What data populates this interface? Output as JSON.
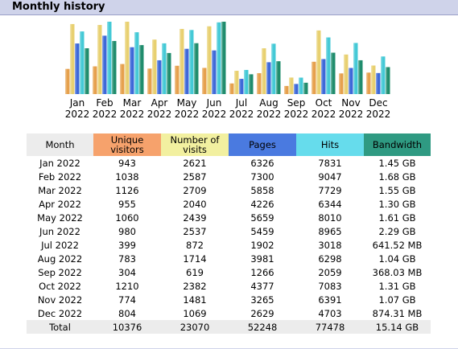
{
  "header": {
    "title": "Monthly history"
  },
  "chart_data": {
    "type": "bar",
    "categories": [
      "Jan 2022",
      "Feb 2022",
      "Mar 2022",
      "Apr 2022",
      "May 2022",
      "Jun 2022",
      "Jul 2022",
      "Aug 2022",
      "Sep 2022",
      "Oct 2022",
      "Nov 2022",
      "Dec 2022"
    ],
    "month_labels": [
      "Jan",
      "Feb",
      "Mar",
      "Apr",
      "May",
      "Jun",
      "Jul",
      "Aug",
      "Sep",
      "Oct",
      "Nov",
      "Dec"
    ],
    "year_labels": [
      "2022",
      "2022",
      "2022",
      "2022",
      "2022",
      "2022",
      "2022",
      "2022",
      "2022",
      "2022",
      "2022",
      "2022"
    ],
    "colors": [
      "#e6a04c",
      "#e8d070",
      "#3d68d8",
      "#44c9d6",
      "#1f8c6c"
    ],
    "series": [
      {
        "name": "Unique visitors",
        "values": [
          943,
          1038,
          1126,
          955,
          1060,
          980,
          399,
          783,
          304,
          1210,
          774,
          804
        ]
      },
      {
        "name": "Number of visits",
        "values": [
          2621,
          2587,
          2709,
          2040,
          2439,
          2537,
          872,
          1714,
          619,
          2382,
          1481,
          1069
        ]
      },
      {
        "name": "Pages",
        "values": [
          6326,
          7300,
          5858,
          4226,
          5659,
          5459,
          1902,
          3981,
          1266,
          4377,
          3265,
          2629
        ]
      },
      {
        "name": "Hits",
        "values": [
          7831,
          9047,
          7729,
          6344,
          8010,
          8965,
          3018,
          6298,
          2059,
          7083,
          6391,
          4703
        ]
      },
      {
        "name": "Bandwidth",
        "unit": "GB",
        "values": [
          1.45,
          1.68,
          1.55,
          1.3,
          1.61,
          2.29,
          0.6265,
          1.04,
          0.3594,
          1.31,
          1.07,
          0.8538
        ]
      }
    ]
  },
  "table": {
    "headers": {
      "month": "Month",
      "visitors": "Unique visitors",
      "visits": "Number of visits",
      "pages": "Pages",
      "hits": "Hits",
      "bandwidth": "Bandwidth"
    },
    "rows": [
      [
        "Jan 2022",
        "943",
        "2621",
        "6326",
        "7831",
        "1.45 GB"
      ],
      [
        "Feb 2022",
        "1038",
        "2587",
        "7300",
        "9047",
        "1.68 GB"
      ],
      [
        "Mar 2022",
        "1126",
        "2709",
        "5858",
        "7729",
        "1.55 GB"
      ],
      [
        "Apr 2022",
        "955",
        "2040",
        "4226",
        "6344",
        "1.30 GB"
      ],
      [
        "May 2022",
        "1060",
        "2439",
        "5659",
        "8010",
        "1.61 GB"
      ],
      [
        "Jun 2022",
        "980",
        "2537",
        "5459",
        "8965",
        "2.29 GB"
      ],
      [
        "Jul 2022",
        "399",
        "872",
        "1902",
        "3018",
        "641.52 MB"
      ],
      [
        "Aug 2022",
        "783",
        "1714",
        "3981",
        "6298",
        "1.04 GB"
      ],
      [
        "Sep 2022",
        "304",
        "619",
        "1266",
        "2059",
        "368.03 MB"
      ],
      [
        "Oct 2022",
        "1210",
        "2382",
        "4377",
        "7083",
        "1.31 GB"
      ],
      [
        "Nov 2022",
        "774",
        "1481",
        "3265",
        "6391",
        "1.07 GB"
      ],
      [
        "Dec 2022",
        "804",
        "1069",
        "2629",
        "4703",
        "874.31 MB"
      ]
    ],
    "total": [
      "Total",
      "10376",
      "23070",
      "52248",
      "77478",
      "15.14 GB"
    ]
  }
}
